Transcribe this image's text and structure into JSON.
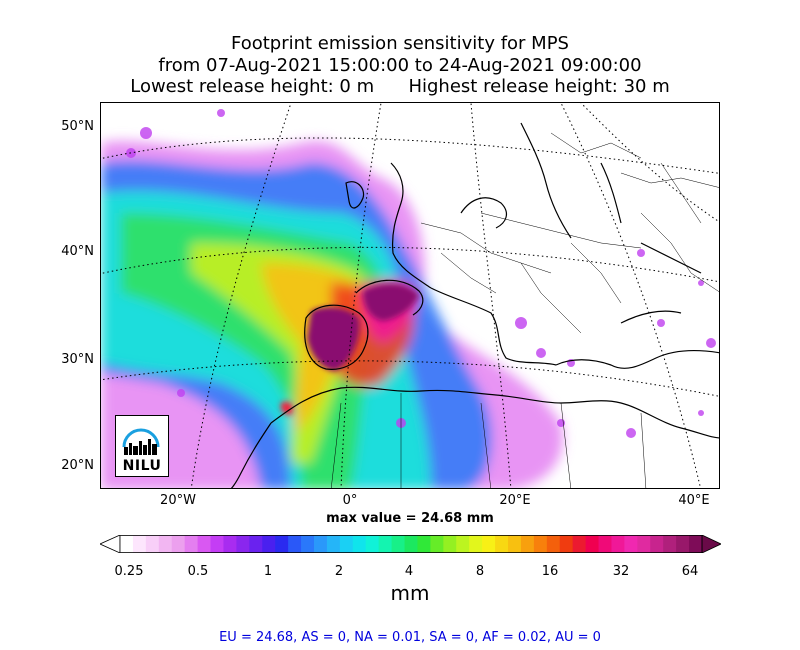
{
  "title": {
    "line1": "Footprint emission sensitivity for MPS",
    "line2": "from 07-Aug-2021 15:00:00 to 24-Aug-2021 09:00:00",
    "line3": "Lowest release height: 0 m      Highest release height: 30 m"
  },
  "map": {
    "lat_labels": [
      "50°N",
      "40°N",
      "30°N",
      "20°N"
    ],
    "lon_labels": [
      "20°W",
      "0°",
      "20°E",
      "40°E"
    ]
  },
  "max_value": "max value = 24.68 mm",
  "colorbar": {
    "ticks": [
      "0.25",
      "0.5",
      "1",
      "2",
      "4",
      "8",
      "16",
      "32",
      "64"
    ],
    "unit": "mm",
    "colors": [
      "#ffffff",
      "#fde6fd",
      "#f8cff8",
      "#f2b6f2",
      "#eca0ee",
      "#e47ef0",
      "#d958f2",
      "#c43df5",
      "#a82cf0",
      "#8a26ee",
      "#6a22ef",
      "#4a20ef",
      "#2a2af0",
      "#2a58f8",
      "#2a78fa",
      "#2a98fa",
      "#25b5f8",
      "#1ad0f4",
      "#10e4ec",
      "#10f2d8",
      "#14f4b0",
      "#18f088",
      "#1ce860",
      "#30e838",
      "#66ec28",
      "#94f022",
      "#bcf420",
      "#e2f61c",
      "#f8f016",
      "#f8d812",
      "#f8c010",
      "#f8a00e",
      "#f8800c",
      "#f4600c",
      "#f03c10",
      "#ec1a30",
      "#f00050",
      "#f00a78",
      "#f01898",
      "#f028b0",
      "#e02aa0",
      "#c8248e",
      "#b0207c",
      "#98186a",
      "#7e0c58"
    ],
    "overflow_color": "#6a0a48"
  },
  "logo_text": "NILU",
  "summary": "EU = 24.68,  AS = 0,  NA = 0.01,  SA = 0,  AF = 0.02,  AU = 0"
}
